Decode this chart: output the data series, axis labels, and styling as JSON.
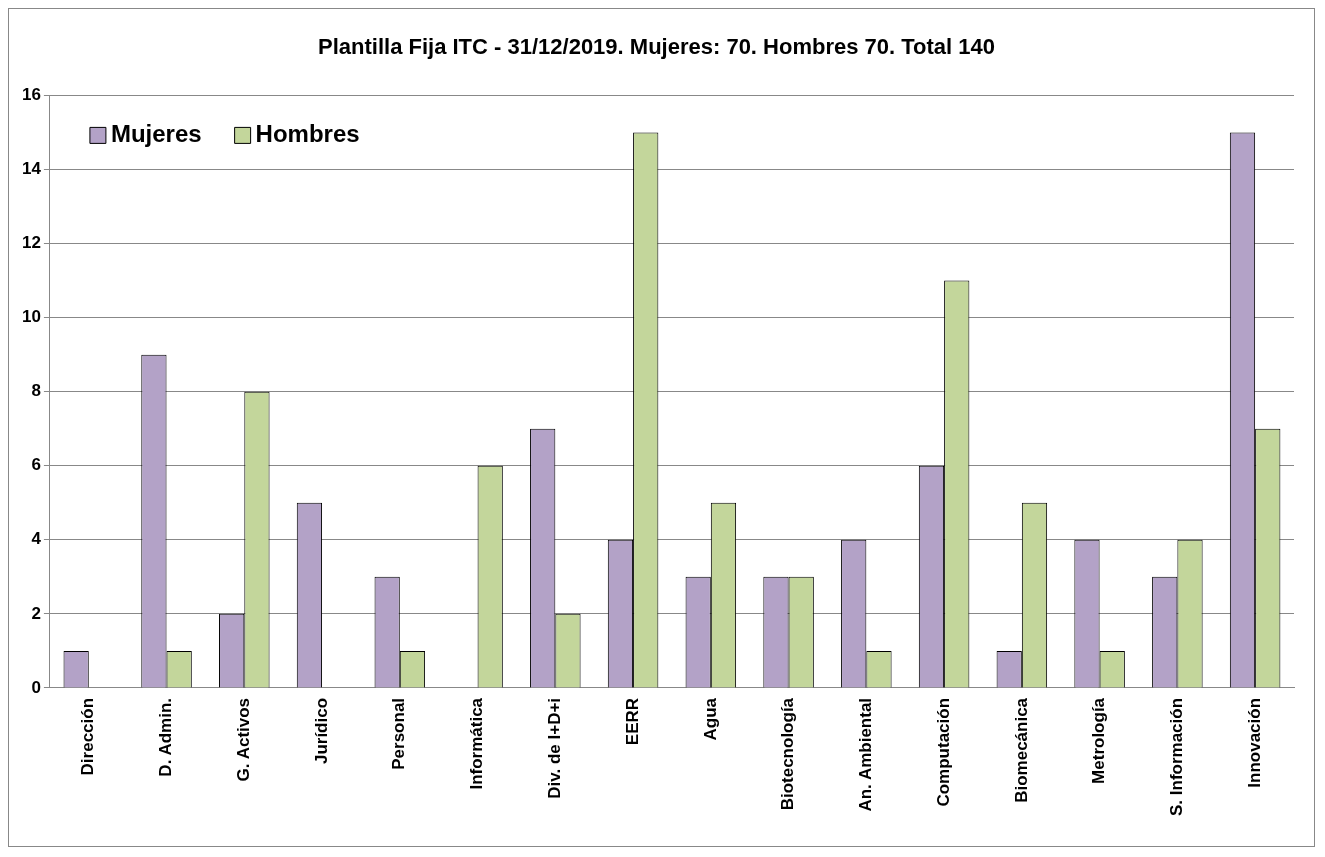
{
  "chart_data": {
    "type": "bar",
    "title": "Plantilla Fija ITC - 31/12/2019. Mujeres: 70. Hombres 70. Total 140",
    "categories": [
      "Dirección",
      "D. Admin.",
      "G. Activos",
      "Jurídico",
      "Personal",
      "Informática",
      "Div. de I+D+i",
      "EERR",
      "Agua",
      "Biotecnología",
      "An. Ambiental",
      "Computación",
      "Biomecánica",
      "Metrología",
      "S. Información",
      "Innovación"
    ],
    "series": [
      {
        "name": "Mujeres",
        "color": "#b3a2c7",
        "values": [
          1,
          9,
          2,
          5,
          3,
          0,
          7,
          4,
          3,
          3,
          4,
          6,
          1,
          4,
          3,
          15
        ]
      },
      {
        "name": "Hombres",
        "color": "#c3d69b",
        "values": [
          0,
          1,
          8,
          0,
          1,
          6,
          2,
          15,
          5,
          3,
          1,
          11,
          5,
          1,
          4,
          7
        ]
      }
    ],
    "ylim": [
      0,
      16
    ],
    "yticks": [
      0,
      2,
      4,
      6,
      8,
      10,
      12,
      14,
      16
    ],
    "grid": "y",
    "legend": "top left"
  }
}
